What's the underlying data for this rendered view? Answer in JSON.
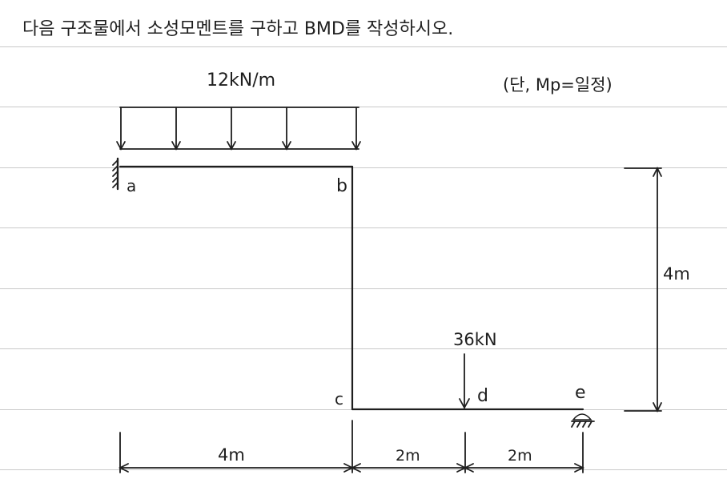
{
  "problem": {
    "instruction": "다음 구조물에서 소성모멘트를 구하고 BMD를 작성하시오.",
    "condition": "(단, Mp=일정)"
  },
  "loads": {
    "distributed": "12kN/m",
    "point": "36kN"
  },
  "nodes": {
    "a": "a",
    "b": "b",
    "c": "c",
    "d": "d",
    "e": "e"
  },
  "dimensions": {
    "ac": "4m",
    "cd": "2m",
    "de": "2m",
    "height": "4m"
  },
  "colors": {
    "ink": "#1e1e1e",
    "rule": "#c9c9c9"
  }
}
